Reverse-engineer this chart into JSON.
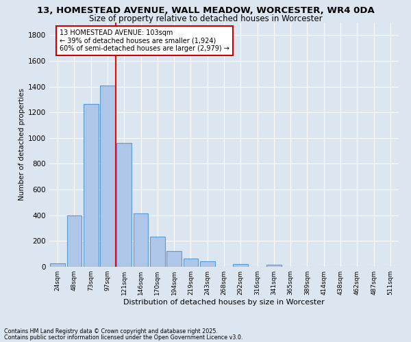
{
  "title1": "13, HOMESTEAD AVENUE, WALL MEADOW, WORCESTER, WR4 0DA",
  "title2": "Size of property relative to detached houses in Worcester",
  "xlabel": "Distribution of detached houses by size in Worcester",
  "ylabel": "Number of detached properties",
  "categories": [
    "24sqm",
    "48sqm",
    "73sqm",
    "97sqm",
    "121sqm",
    "146sqm",
    "170sqm",
    "194sqm",
    "219sqm",
    "243sqm",
    "268sqm",
    "292sqm",
    "316sqm",
    "341sqm",
    "365sqm",
    "389sqm",
    "414sqm",
    "438sqm",
    "462sqm",
    "487sqm",
    "511sqm"
  ],
  "values": [
    25,
    400,
    1265,
    1410,
    960,
    415,
    235,
    120,
    65,
    45,
    0,
    20,
    0,
    15,
    0,
    0,
    0,
    0,
    0,
    0,
    0
  ],
  "bar_color": "#aec6e8",
  "bar_edge_color": "#5b9bd5",
  "annotation_text_line1": "13 HOMESTEAD AVENUE: 103sqm",
  "annotation_text_line2": "← 39% of detached houses are smaller (1,924)",
  "annotation_text_line3": "60% of semi-detached houses are larger (2,979) →",
  "annotation_box_color": "#ffffff",
  "annotation_box_edge": "#cc0000",
  "red_line_x": 3.5,
  "ylim": [
    0,
    1900
  ],
  "yticks": [
    0,
    200,
    400,
    600,
    800,
    1000,
    1200,
    1400,
    1600,
    1800
  ],
  "footer1": "Contains HM Land Registry data © Crown copyright and database right 2025.",
  "footer2": "Contains public sector information licensed under the Open Government Licence v3.0.",
  "background_color": "#dce6f1",
  "plot_background": "#dce6f1",
  "grid_color": "#ffffff",
  "title1_fontsize": 9.5,
  "title2_fontsize": 8.5,
  "bar_width": 0.9
}
